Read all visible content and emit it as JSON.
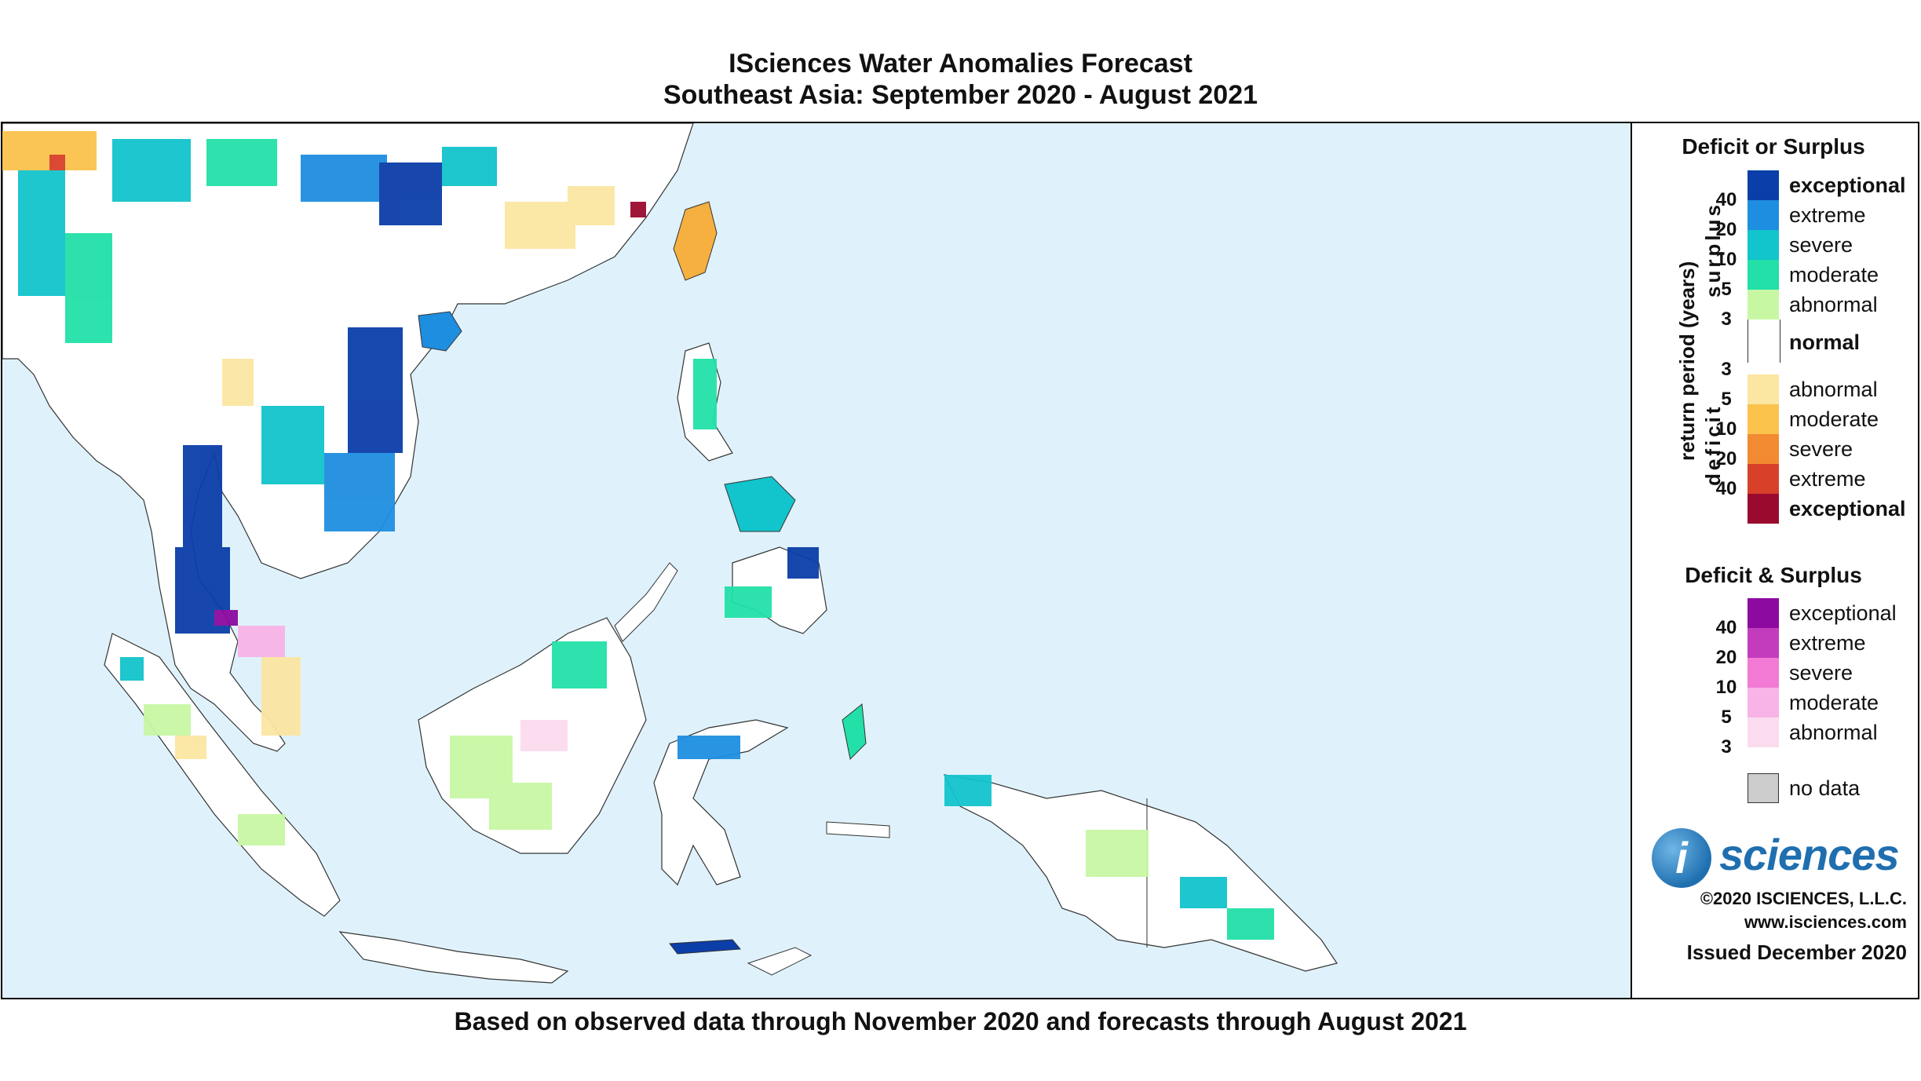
{
  "title_line1": "ISciences Water Anomalies Forecast",
  "title_line2": "Southeast Asia: September 2020 - August 2021",
  "footer": "Based on observed data through November 2020 and forecasts through August 2021",
  "legend": {
    "deficit_surplus_title": "Deficit or Surplus",
    "return_period_label": "return period (years)",
    "surplus_label": "surplus",
    "deficit_label": "deficit",
    "surplus_classes": [
      {
        "label": "exceptional",
        "color": "#0b3ea8",
        "bold": true
      },
      {
        "label": "extreme",
        "color": "#1e8ee0"
      },
      {
        "label": "severe",
        "color": "#12c4cc"
      },
      {
        "label": "moderate",
        "color": "#22e0a8"
      },
      {
        "label": "abnormal",
        "color": "#c8f7a4"
      }
    ],
    "surplus_ticks": [
      "40",
      "20",
      "10",
      "5",
      "3"
    ],
    "normal_label": "normal",
    "deficit_classes": [
      {
        "label": "abnormal",
        "color": "#fbe6a2"
      },
      {
        "label": "moderate",
        "color": "#fbc24c"
      },
      {
        "label": "severe",
        "color": "#f28a32"
      },
      {
        "label": "extreme",
        "color": "#d8402a"
      },
      {
        "label": "exceptional",
        "color": "#9a0a2e",
        "bold": true
      }
    ],
    "deficit_ticks": [
      "3",
      "5",
      "10",
      "20",
      "40"
    ],
    "both_title": "Deficit & Surplus",
    "both_classes": [
      {
        "label": "exceptional",
        "color": "#8c0aa0"
      },
      {
        "label": "extreme",
        "color": "#c33cbe"
      },
      {
        "label": "severe",
        "color": "#f27ad4"
      },
      {
        "label": "moderate",
        "color": "#f8b4e6"
      },
      {
        "label": "abnormal",
        "color": "#fbdcef"
      }
    ],
    "both_ticks": [
      "40",
      "20",
      "10",
      "5",
      "3"
    ],
    "no_data_label": "no data",
    "no_data_color": "#cccccc"
  },
  "logo": {
    "mark": "i",
    "text": "sciences"
  },
  "credits": {
    "copyright": "©2020 ISCIENCES, L.L.C.",
    "url": "www.isciences.com",
    "issued": "Issued December 2020"
  },
  "map": {
    "ocean_color": "#dff2fb",
    "land_color": "#ffffff",
    "border_color": "#333333"
  }
}
